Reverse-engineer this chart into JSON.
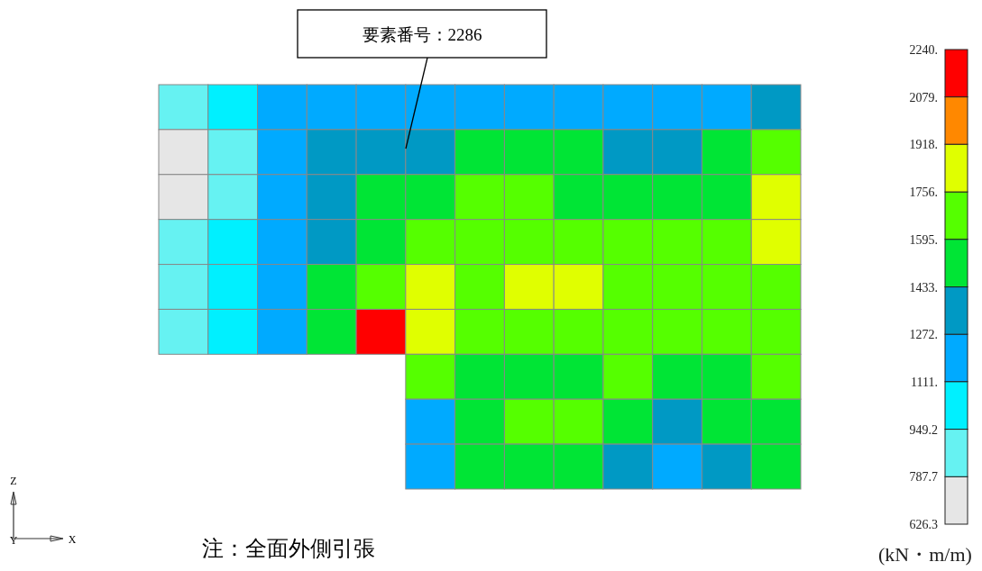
{
  "chart_data": {
    "type": "heatmap",
    "clabel": "(kN・m/m)",
    "annotations": [
      "要素番号：2286",
      "注：全面外側引張",
      "Z",
      "X",
      "Y"
    ],
    "categories": [
      null,
      null,
      null,
      null,
      null,
      null,
      null,
      null,
      null,
      null,
      null,
      null,
      null
    ],
    "y_categories": [
      null,
      null,
      null,
      null,
      null,
      null,
      null,
      null,
      null
    ],
    "cells": [
      [
        868,
        1030,
        1192,
        1192,
        1192,
        1192,
        1192,
        1192,
        1192,
        1192,
        1192,
        1192,
        1352
      ],
      [
        707,
        868,
        1192,
        1352,
        1352,
        1352,
        1514,
        1514,
        1514,
        1352,
        1352,
        1514,
        1676
      ],
      [
        707,
        868,
        1192,
        1352,
        1514,
        1514,
        1676,
        1676,
        1514,
        1514,
        1514,
        1514,
        1837
      ],
      [
        868,
        1030,
        1192,
        1352,
        1514,
        1676,
        1676,
        1676,
        1676,
        1676,
        1676,
        1676,
        1837
      ],
      [
        868,
        1030,
        1192,
        1514,
        1676,
        1837,
        1676,
        1837,
        1837,
        1676,
        1676,
        1676,
        1676
      ],
      [
        868,
        1030,
        1192,
        1514,
        2160,
        1837,
        1676,
        1676,
        1676,
        1676,
        1676,
        1676,
        1676
      ],
      [
        null,
        null,
        null,
        null,
        null,
        1676,
        1514,
        1514,
        1514,
        1676,
        1514,
        1514,
        1676
      ],
      [
        null,
        null,
        null,
        null,
        null,
        1192,
        1514,
        1676,
        1676,
        1514,
        1352,
        1514,
        1514
      ],
      [
        null,
        null,
        null,
        null,
        null,
        1192,
        1514,
        1514,
        1514,
        1352,
        1192,
        1352,
        1514
      ]
    ],
    "clim": [
      626.3,
      2240
    ],
    "cticks": [
      626.3,
      787.7,
      949.2,
      {
        "value": 1111,
        "label": "1111."
      },
      {
        "value": 1272,
        "label": "1272."
      },
      {
        "value": 1433,
        "label": "1433."
      },
      {
        "value": 1595,
        "label": "1595."
      },
      {
        "value": 1756,
        "label": "1756."
      },
      {
        "value": 1918,
        "label": "1918."
      },
      {
        "value": 2079,
        "label": "2079."
      },
      {
        "value": 2240,
        "label": "2240."
      }
    ],
    "colors": [
      "#e6e6e6",
      "#66f2f2",
      "#00f0ff",
      "#00aaff",
      "#0099c4",
      "#00e535",
      "#55ff00",
      "#e0ff00",
      "#ff8800",
      "#ff0000"
    ]
  }
}
